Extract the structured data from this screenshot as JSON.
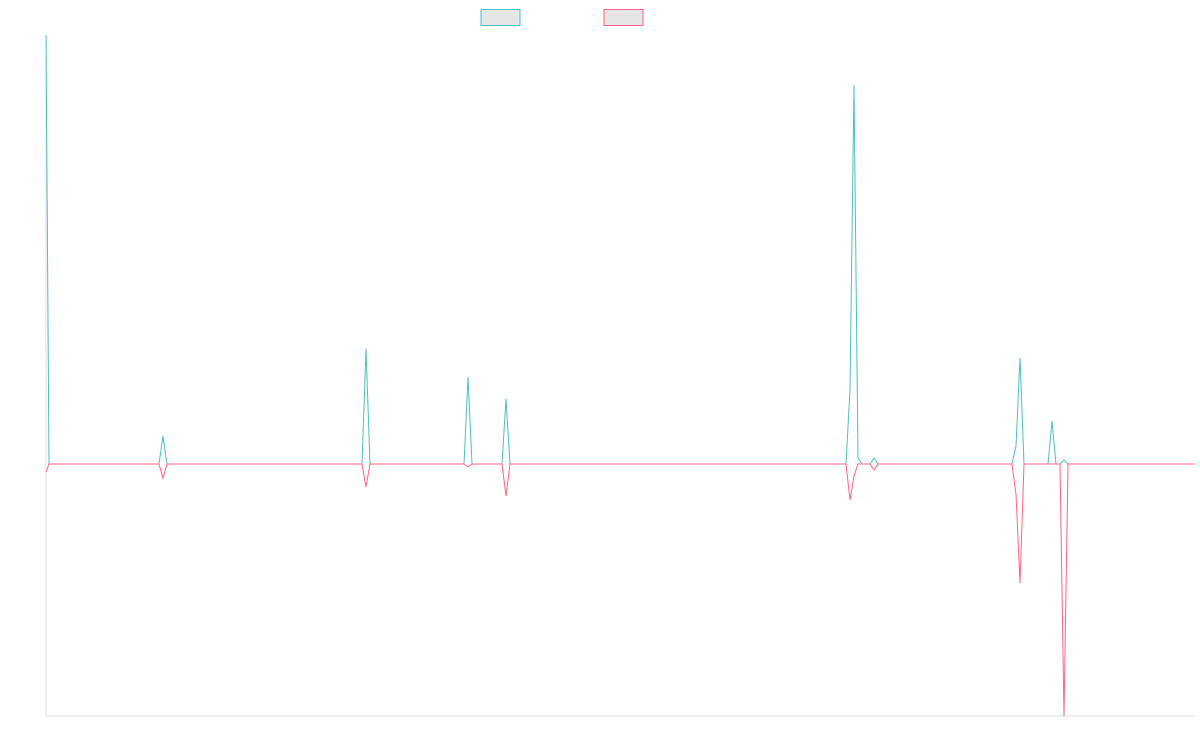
{
  "chart_data": {
    "type": "line",
    "x": [
      0,
      3,
      113,
      117,
      121,
      316,
      320,
      324,
      418,
      422,
      426,
      456,
      460,
      464,
      800,
      804,
      808,
      812,
      816,
      824,
      828,
      832,
      966,
      970,
      974,
      978,
      1002,
      1006,
      1010,
      1014,
      1018,
      1022,
      1149
    ],
    "series": [
      {
        "color": "#4bc0c0",
        "values": [
          429,
          0,
          0,
          28,
          0,
          0,
          115,
          0,
          0,
          87,
          0,
          0,
          65,
          0,
          0,
          75,
          379,
          6,
          0,
          0,
          6,
          0,
          0,
          18,
          106,
          0,
          0,
          43,
          0,
          0,
          4,
          0,
          0
        ]
      },
      {
        "color": "#ff6384",
        "values": [
          -8,
          0,
          0,
          -14,
          0,
          0,
          -23,
          0,
          0,
          -3,
          0,
          0,
          -32,
          0,
          0,
          -36,
          -12,
          0,
          0,
          0,
          -6,
          0,
          0,
          -30,
          -119,
          0,
          0,
          0,
          0,
          0,
          -252,
          0,
          0
        ]
      }
    ],
    "xlim": [
      0,
      1149
    ],
    "ylim": [
      -252,
      429
    ]
  }
}
